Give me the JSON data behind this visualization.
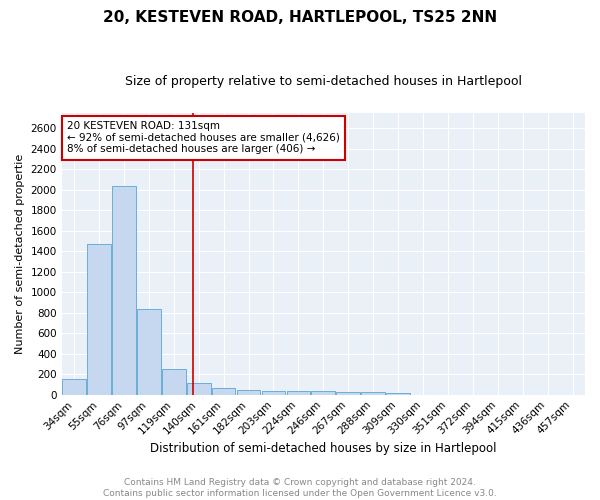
{
  "title": "20, KESTEVEN ROAD, HARTLEPOOL, TS25 2NN",
  "subtitle": "Size of property relative to semi-detached houses in Hartlepool",
  "xlabel": "Distribution of semi-detached houses by size in Hartlepool",
  "ylabel": "Number of semi-detached propertie",
  "footer_line1": "Contains HM Land Registry data © Crown copyright and database right 2024.",
  "footer_line2": "Contains public sector information licensed under the Open Government Licence v3.0.",
  "bins": [
    "34sqm",
    "55sqm",
    "76sqm",
    "97sqm",
    "119sqm",
    "140sqm",
    "161sqm",
    "182sqm",
    "203sqm",
    "224sqm",
    "246sqm",
    "267sqm",
    "288sqm",
    "309sqm",
    "330sqm",
    "351sqm",
    "372sqm",
    "394sqm",
    "415sqm",
    "436sqm",
    "457sqm"
  ],
  "values": [
    150,
    1470,
    2040,
    835,
    255,
    115,
    68,
    45,
    38,
    35,
    32,
    30,
    22,
    15,
    0,
    0,
    0,
    0,
    0,
    0,
    0
  ],
  "bar_color": "#c5d8f0",
  "bar_edge_color": "#6aaed6",
  "annotation_box_color": "#ffffff",
  "annotation_box_edge": "#cc0000",
  "vline_color": "#cc0000",
  "vline_x": 4.77,
  "annotation_title": "20 KESTEVEN ROAD: 131sqm",
  "annotation_line1": "← 92% of semi-detached houses are smaller (4,626)",
  "annotation_line2": "8% of semi-detached houses are larger (406) →",
  "bg_color": "#eaf0f8",
  "grid_color": "#ffffff",
  "title_fontsize": 11,
  "subtitle_fontsize": 9,
  "xlabel_fontsize": 8.5,
  "ylabel_fontsize": 8,
  "tick_fontsize": 7.5,
  "annotation_fontsize": 7.5,
  "footer_fontsize": 6.5,
  "yticks": [
    0,
    200,
    400,
    600,
    800,
    1000,
    1200,
    1400,
    1600,
    1800,
    2000,
    2200,
    2400,
    2600
  ],
  "ymax": 2750
}
